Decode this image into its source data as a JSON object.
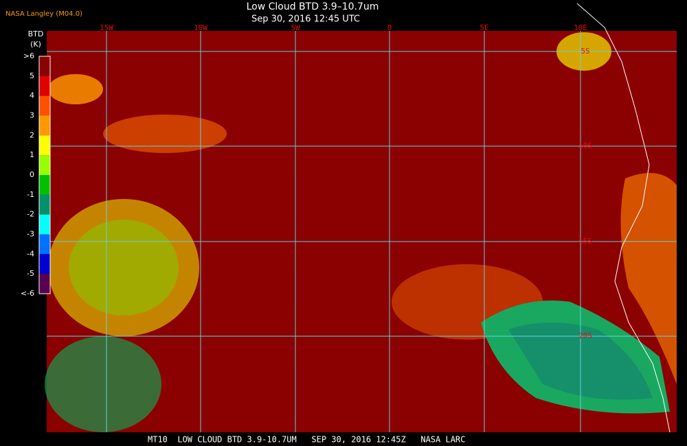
{
  "header": {
    "title": "Low Cloud BTD 3.9–10.7um",
    "subtitle": "Sep 30, 2016 12:45 UTC",
    "credit": "NASA Langley (M04.0)"
  },
  "legend": {
    "title": "BTD",
    "unit": "(K)",
    "labels": [
      ">6",
      "5",
      "4",
      "3",
      "2",
      "1",
      "0",
      "-1",
      "-2",
      "-3",
      "-4",
      "-5",
      "<-6"
    ],
    "colors": [
      "#8b0000",
      "#e00000",
      "#ff5000",
      "#ff9800",
      "#ffff00",
      "#98ff00",
      "#00c000",
      "#00906a",
      "#00ffff",
      "#0070ff",
      "#0000d0",
      "#5a0050"
    ]
  },
  "map": {
    "lon_labels": [
      "15W",
      "10W",
      "5W",
      "0",
      "5E",
      "10E"
    ],
    "lat_labels": [
      "5S",
      "10S",
      "15S",
      "20S"
    ]
  },
  "footer": "MT10  LOW CLOUD BTD 3.9-10.7UM   SEP 30, 2016 12:45Z   NASA LARC"
}
